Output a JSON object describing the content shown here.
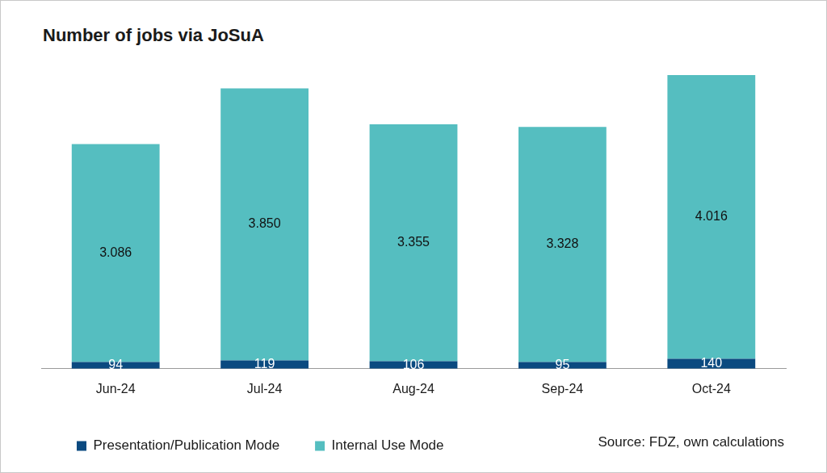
{
  "chart_data": {
    "type": "bar",
    "title": "Number of jobs via JoSuA",
    "categories": [
      "Jun-24",
      "Jul-24",
      "Aug-24",
      "Sep-24",
      "Oct-24"
    ],
    "series": [
      {
        "name": "Presentation/Publication Mode",
        "color": "#0b4a80",
        "values": [
          94,
          119,
          106,
          95,
          140
        ]
      },
      {
        "name": "Internal Use Mode",
        "color": "#55bec0",
        "values": [
          3086,
          3850,
          3355,
          3328,
          4016
        ],
        "value_labels": [
          "3.086",
          "3.850",
          "3.355",
          "3.328",
          "4.016"
        ]
      }
    ],
    "stacked": true,
    "data_labels": true,
    "legend": "bottom-left",
    "tick_labels": "x",
    "grid": false,
    "ylim": [
      0,
      4500
    ],
    "source": "Source: FDZ, own calculations"
  }
}
